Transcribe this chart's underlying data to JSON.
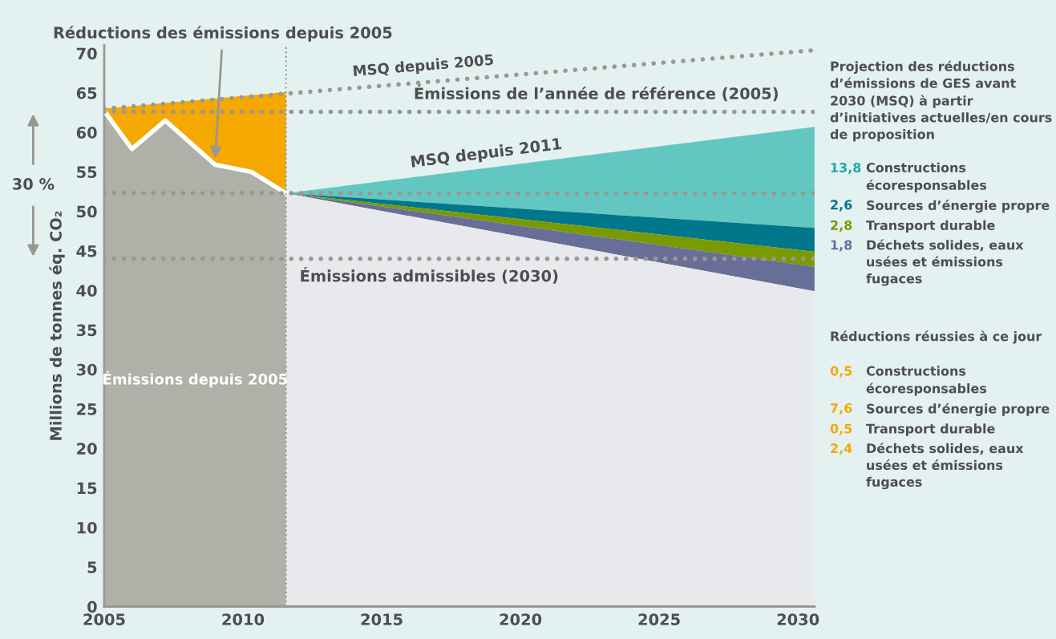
{
  "chart_data": [
    {
      "type": "area",
      "ylabel": "Millions de tonnes éq. CO₂",
      "xlim": [
        2005,
        2030.6
      ],
      "ylim": [
        0,
        71
      ],
      "xticks": [
        2005,
        2010,
        2015,
        2020,
        2025,
        2030
      ],
      "yticks": [
        0,
        5,
        10,
        15,
        20,
        25,
        30,
        35,
        40,
        45,
        50,
        55,
        60,
        65,
        70
      ],
      "grid": false,
      "series": [
        {
          "name": "Réductions des émissions depuis 2005",
          "color": "#f5a800",
          "x": [
            2005,
            2006,
            2007.2,
            2009,
            2010.3,
            2011.55
          ],
          "values": [
            63.0,
            63.3,
            63.7,
            64.3,
            64.7,
            65.1
          ]
        },
        {
          "name": "Émissions depuis 2005",
          "color": "#aeb1a8",
          "x": [
            2005,
            2006,
            2007.2,
            2009,
            2010.3,
            2011.55
          ],
          "values": [
            62.7,
            57.9,
            61.5,
            55.9,
            55.0,
            52.3
          ]
        },
        {
          "color": "#63c7c1",
          "x": [
            2011.55,
            2030.6
          ],
          "values": [
            52.3,
            60.7
          ]
        },
        {
          "color": "#00778b",
          "x": [
            2011.55,
            2030.6
          ],
          "values": [
            52.3,
            47.9
          ]
        },
        {
          "color": "#7a9a01",
          "x": [
            2011.55,
            2030.6
          ],
          "values": [
            52.3,
            44.9
          ]
        },
        {
          "color": "#676f98",
          "x": [
            2011.55,
            2030.6
          ],
          "values": [
            52.3,
            43.0
          ]
        },
        {
          "color": "#e8e9ec",
          "x": [
            2011.55,
            2030.6
          ],
          "values": [
            52.3,
            39.9
          ]
        },
        {
          "type": "line",
          "name": "MSQ depuis 2005",
          "color": "#999891",
          "line_style": "dotted",
          "x": [
            2005,
            2030.6
          ],
          "values": [
            63.0,
            70.4
          ]
        }
      ],
      "ref_lines": [
        {
          "axis": "y",
          "value": 62.6,
          "label": "Émissions de l’année de référence (2005)",
          "color": "#999891",
          "line_style": "dotted"
        },
        {
          "axis": "y",
          "value": 52.3,
          "color": "#999891",
          "line_style": "dotted"
        },
        {
          "axis": "y",
          "value": 44.0,
          "label": "Émissions admissibles (2030)",
          "color": "#999891",
          "line_style": "dotted"
        },
        {
          "axis": "x",
          "value": 2011.55,
          "color": "#999891",
          "line_style": "dotted"
        }
      ],
      "annotations": [
        {
          "text": "MSQ depuis 2011",
          "x": 2016,
          "y": 54.3
        },
        "30 %"
      ]
    },
    {
      "type": "other",
      "title": "Projection des réductions d’émissions de GES avant 2030 (MSQ) à partir d’initiatives actuelles/en cours de proposition",
      "categories": [
        "Constructions écoresponsables",
        "Sources d’énergie propre",
        "Transport durable",
        "Déchets solides, eaux usées et émissions fugaces"
      ],
      "value_labels": [
        "13,8",
        "2,6",
        "2,8",
        "1,8"
      ],
      "colors": [
        "#1aaca3",
        "#00778b",
        "#7a9a01",
        "#676f98"
      ]
    },
    {
      "type": "other",
      "title": "Réductions réussies à ce jour",
      "categories": [
        "Constructions écoresponsables",
        "Sources d’énergie propre",
        "Transport durable",
        "Déchets solides, eaux usées et émissions fugaces"
      ],
      "value_labels": [
        "0,5",
        "7,6",
        "0,5",
        "2,4"
      ],
      "colors": [
        "#f5a800",
        "#f5a800",
        "#f5a800",
        "#f5a800"
      ]
    }
  ]
}
